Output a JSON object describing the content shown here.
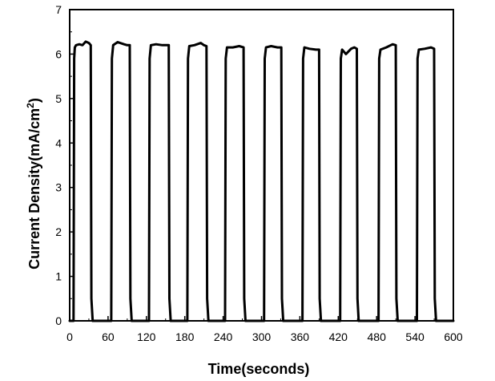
{
  "chart_data": {
    "type": "line",
    "title": "",
    "xlabel": "Time(seconds)",
    "ylabel_main": "Current Density(mA/cm",
    "ylabel_sup": "2",
    "ylabel_close": ")",
    "xlim": [
      0,
      600
    ],
    "ylim": [
      0,
      7
    ],
    "xticks": [
      0,
      60,
      120,
      180,
      240,
      300,
      360,
      420,
      480,
      540,
      600
    ],
    "yticks": [
      0,
      1,
      2,
      3,
      4,
      5,
      6,
      7
    ],
    "grid": false,
    "line_color": "#000000",
    "series": [
      {
        "x": [
          0,
          6,
          7,
          8,
          10,
          15,
          20,
          25,
          30,
          33,
          34,
          36,
          60,
          65,
          66,
          68,
          75,
          85,
          90,
          94,
          95,
          97,
          120,
          124,
          125,
          127,
          135,
          145,
          155,
          156,
          158,
          180,
          184,
          185,
          187,
          195,
          205,
          210,
          214,
          215,
          217,
          240,
          243,
          244,
          246,
          255,
          265,
          272,
          273,
          275,
          300,
          304,
          305,
          307,
          315,
          325,
          331,
          332,
          334,
          360,
          364,
          365,
          367,
          375,
          385,
          390,
          391,
          393,
          420,
          423,
          424,
          426,
          432,
          440,
          445,
          449,
          450,
          452,
          480,
          483,
          484,
          486,
          495,
          505,
          510,
          511,
          513,
          540,
          543,
          544,
          546,
          555,
          565,
          570,
          571,
          573,
          600
        ],
        "y": [
          0,
          0,
          5.9,
          6.15,
          6.2,
          6.22,
          6.2,
          6.28,
          6.25,
          6.2,
          0.5,
          0,
          0,
          0,
          5.9,
          6.2,
          6.27,
          6.22,
          6.2,
          6.2,
          0.5,
          0,
          0,
          0,
          5.9,
          6.2,
          6.22,
          6.2,
          6.2,
          0.5,
          0,
          0,
          0,
          5.9,
          6.18,
          6.2,
          6.25,
          6.2,
          6.18,
          0.5,
          0,
          0,
          0,
          5.9,
          6.15,
          6.15,
          6.18,
          6.15,
          0.5,
          0,
          0,
          0,
          5.9,
          6.15,
          6.18,
          6.15,
          6.15,
          0.5,
          0,
          0,
          0,
          5.9,
          6.15,
          6.12,
          6.1,
          6.1,
          0.5,
          0,
          0,
          0,
          5.9,
          6.1,
          6.0,
          6.12,
          6.15,
          6.12,
          0.5,
          0,
          0,
          0,
          5.9,
          6.1,
          6.15,
          6.22,
          6.2,
          0.5,
          0,
          0,
          0,
          5.9,
          6.1,
          6.12,
          6.15,
          6.12,
          0.5,
          0,
          0
        ]
      }
    ]
  }
}
